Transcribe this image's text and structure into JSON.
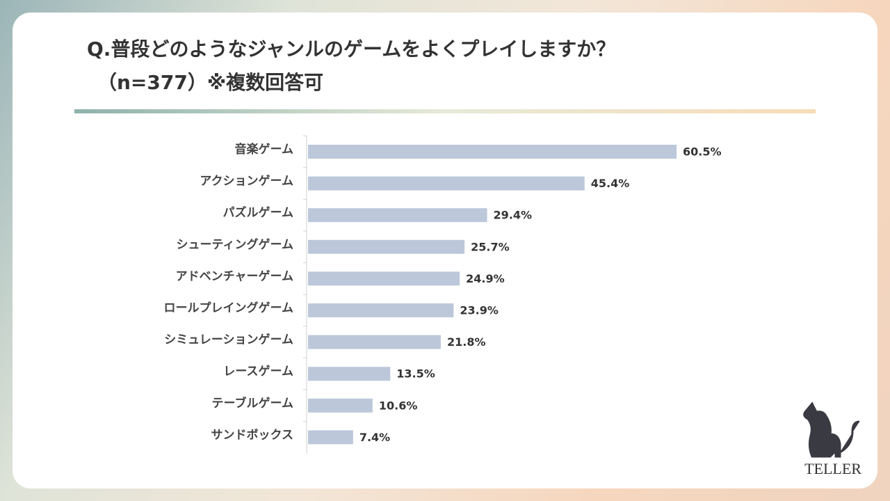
{
  "chart_data": {
    "type": "bar",
    "orientation": "horizontal",
    "title": "Q.普段どのようなジャンルのゲームをよくプレイしますか？",
    "subtitle": "（n=377）※複数回答可",
    "categories": [
      "音楽ゲーム",
      "アクションゲーム",
      "パズルゲーム",
      "シューティングゲーム",
      "アドベンチャーゲーム",
      "ロールプレイングゲーム",
      "シミュレーションゲーム",
      "レースゲーム",
      "テーブルゲーム",
      "サンドボックス"
    ],
    "values": [
      60.5,
      45.4,
      29.4,
      25.7,
      24.9,
      23.9,
      21.8,
      13.5,
      10.6,
      7.4
    ],
    "value_labels": [
      "60.5%",
      "45.4%",
      "29.4%",
      "25.7%",
      "24.9%",
      "23.9%",
      "21.8%",
      "13.5%",
      "10.6%",
      "7.4%"
    ],
    "color": "#bcc8da"
  },
  "brand": "TELLER"
}
